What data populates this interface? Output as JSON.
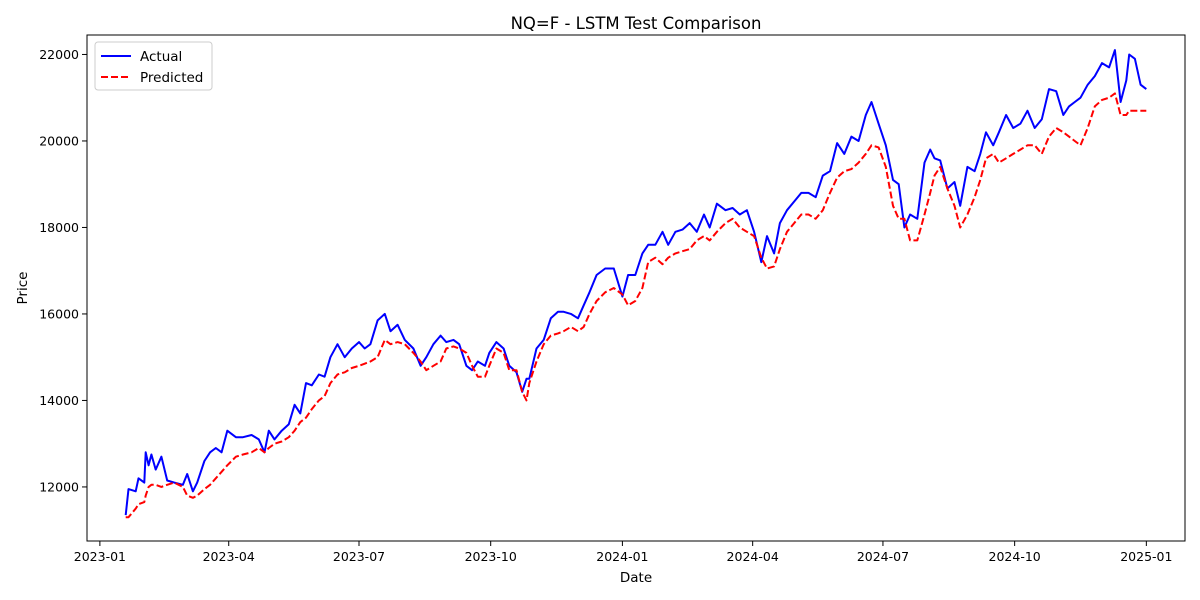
{
  "chart_data": {
    "type": "line",
    "title": "NQ=F - LSTM Test Comparison",
    "xlabel": "Date",
    "ylabel": "Price",
    "xlim": [
      "2022-12-23",
      "2025-01-28"
    ],
    "ylim": [
      10750,
      22450
    ],
    "x_ticks": [
      "2023-01",
      "2023-04",
      "2023-07",
      "2023-10",
      "2024-01",
      "2024-04",
      "2024-07",
      "2024-10",
      "2025-01"
    ],
    "y_ticks": [
      12000,
      14000,
      16000,
      18000,
      20000,
      22000
    ],
    "y_tick_labels": [
      "12000",
      "14000",
      "16000",
      "18000",
      "20000",
      "22000"
    ],
    "grid": false,
    "legend_position": "upper-left",
    "series": [
      {
        "name": "Actual",
        "color": "#0000ff",
        "style": "solid",
        "x": [
          "2023-01-19",
          "2023-01-21",
          "2023-01-26",
          "2023-01-28",
          "2023-02-01",
          "2023-02-02",
          "2023-02-04",
          "2023-02-06",
          "2023-02-09",
          "2023-02-13",
          "2023-02-17",
          "2023-02-22",
          "2023-02-28",
          "2023-03-03",
          "2023-03-07",
          "2023-03-10",
          "2023-03-15",
          "2023-03-19",
          "2023-03-23",
          "2023-03-27",
          "2023-03-31",
          "2023-04-06",
          "2023-04-11",
          "2023-04-17",
          "2023-04-22",
          "2023-04-26",
          "2023-04-29",
          "2023-05-03",
          "2023-05-08",
          "2023-05-13",
          "2023-05-17",
          "2023-05-21",
          "2023-05-25",
          "2023-05-29",
          "2023-06-03",
          "2023-06-07",
          "2023-06-11",
          "2023-06-16",
          "2023-06-21",
          "2023-06-26",
          "2023-07-01",
          "2023-07-05",
          "2023-07-09",
          "2023-07-14",
          "2023-07-19",
          "2023-07-23",
          "2023-07-28",
          "2023-08-02",
          "2023-08-08",
          "2023-08-13",
          "2023-08-17",
          "2023-08-22",
          "2023-08-27",
          "2023-08-31",
          "2023-09-05",
          "2023-09-09",
          "2023-09-14",
          "2023-09-18",
          "2023-09-22",
          "2023-09-27",
          "2023-09-30",
          "2023-10-05",
          "2023-10-10",
          "2023-10-14",
          "2023-10-19",
          "2023-10-23",
          "2023-10-26",
          "2023-10-28",
          "2023-11-02",
          "2023-11-07",
          "2023-11-12",
          "2023-11-17",
          "2023-11-21",
          "2023-11-26",
          "2023-12-01",
          "2023-12-05",
          "2023-12-09",
          "2023-12-14",
          "2023-12-20",
          "2023-12-26",
          "2024-01-01",
          "2024-01-05",
          "2024-01-10",
          "2024-01-15",
          "2024-01-19",
          "2024-01-24",
          "2024-01-29",
          "2024-02-02",
          "2024-02-07",
          "2024-02-12",
          "2024-02-17",
          "2024-02-22",
          "2024-02-27",
          "2024-03-02",
          "2024-03-07",
          "2024-03-13",
          "2024-03-18",
          "2024-03-23",
          "2024-03-28",
          "2024-04-02",
          "2024-04-07",
          "2024-04-11",
          "2024-04-16",
          "2024-04-20",
          "2024-04-25",
          "2024-04-30",
          "2024-05-05",
          "2024-05-10",
          "2024-05-15",
          "2024-05-20",
          "2024-05-25",
          "2024-05-30",
          "2024-06-04",
          "2024-06-09",
          "2024-06-14",
          "2024-06-19",
          "2024-06-23",
          "2024-06-28",
          "2024-07-03",
          "2024-07-08",
          "2024-07-12",
          "2024-07-16",
          "2024-07-20",
          "2024-07-25",
          "2024-07-30",
          "2024-08-03",
          "2024-08-06",
          "2024-08-10",
          "2024-08-15",
          "2024-08-20",
          "2024-08-24",
          "2024-08-29",
          "2024-09-03",
          "2024-09-07",
          "2024-09-11",
          "2024-09-16",
          "2024-09-20",
          "2024-09-25",
          "2024-09-30",
          "2024-10-05",
          "2024-10-10",
          "2024-10-15",
          "2024-10-20",
          "2024-10-25",
          "2024-10-30",
          "2024-11-04",
          "2024-11-08",
          "2024-11-12",
          "2024-11-16",
          "2024-11-21",
          "2024-11-26",
          "2024-12-01",
          "2024-12-06",
          "2024-12-10",
          "2024-12-14",
          "2024-12-18",
          "2024-12-20",
          "2024-12-24",
          "2024-12-28",
          "2025-01-01"
        ],
        "values": [
          11350,
          11950,
          11900,
          12200,
          12100,
          12800,
          12500,
          12750,
          12400,
          12700,
          12150,
          12100,
          12050,
          12300,
          11900,
          12100,
          12600,
          12800,
          12900,
          12800,
          13300,
          13150,
          13150,
          13200,
          13100,
          12800,
          13300,
          13100,
          13300,
          13450,
          13900,
          13700,
          14400,
          14350,
          14600,
          14550,
          15000,
          15300,
          15000,
          15200,
          15350,
          15200,
          15300,
          15850,
          16000,
          15600,
          15750,
          15400,
          15200,
          14800,
          15000,
          15300,
          15500,
          15350,
          15400,
          15300,
          14800,
          14700,
          14900,
          14800,
          15100,
          15350,
          15200,
          14800,
          14650,
          14200,
          14500,
          14500,
          15200,
          15400,
          15900,
          16050,
          16050,
          16000,
          15900,
          16200,
          16500,
          16900,
          17050,
          17050,
          16400,
          16900,
          16900,
          17400,
          17600,
          17600,
          17900,
          17600,
          17900,
          17950,
          18100,
          17900,
          18300,
          18000,
          18550,
          18400,
          18450,
          18300,
          18400,
          17900,
          17200,
          17800,
          17400,
          18100,
          18400,
          18600,
          18800,
          18800,
          18700,
          19200,
          19300,
          19950,
          19700,
          20100,
          20000,
          20600,
          20900,
          20400,
          19900,
          19100,
          19000,
          18000,
          18300,
          18200,
          19500,
          19800,
          19600,
          19550,
          18900,
          19050,
          18500,
          19400,
          19300,
          19700,
          20200,
          19900,
          20200,
          20600,
          20300,
          20400,
          20700,
          20300,
          20500,
          21200,
          21150,
          20600,
          20800,
          20900,
          21000,
          21300,
          21500,
          21800,
          21700,
          22100,
          20900,
          21400,
          22000,
          21900,
          21300,
          21200
        ]
      },
      {
        "name": "Predicted",
        "color": "#ff0000",
        "style": "dashed",
        "x": [
          "2023-01-19",
          "2023-01-21",
          "2023-01-26",
          "2023-01-28",
          "2023-02-01",
          "2023-02-02",
          "2023-02-04",
          "2023-02-06",
          "2023-02-09",
          "2023-02-13",
          "2023-02-17",
          "2023-02-22",
          "2023-02-28",
          "2023-03-03",
          "2023-03-07",
          "2023-03-10",
          "2023-03-15",
          "2023-03-19",
          "2023-03-23",
          "2023-03-27",
          "2023-03-31",
          "2023-04-06",
          "2023-04-11",
          "2023-04-17",
          "2023-04-22",
          "2023-04-26",
          "2023-04-29",
          "2023-05-03",
          "2023-05-08",
          "2023-05-13",
          "2023-05-17",
          "2023-05-21",
          "2023-05-25",
          "2023-05-29",
          "2023-06-03",
          "2023-06-07",
          "2023-06-11",
          "2023-06-16",
          "2023-06-21",
          "2023-06-26",
          "2023-07-01",
          "2023-07-05",
          "2023-07-09",
          "2023-07-14",
          "2023-07-19",
          "2023-07-23",
          "2023-07-28",
          "2023-08-02",
          "2023-08-08",
          "2023-08-13",
          "2023-08-17",
          "2023-08-22",
          "2023-08-27",
          "2023-08-31",
          "2023-09-05",
          "2023-09-09",
          "2023-09-14",
          "2023-09-18",
          "2023-09-22",
          "2023-09-27",
          "2023-09-30",
          "2023-10-05",
          "2023-10-10",
          "2023-10-14",
          "2023-10-19",
          "2023-10-23",
          "2023-10-26",
          "2023-10-28",
          "2023-11-02",
          "2023-11-07",
          "2023-11-12",
          "2023-11-17",
          "2023-11-21",
          "2023-11-26",
          "2023-12-01",
          "2023-12-05",
          "2023-12-09",
          "2023-12-14",
          "2023-12-20",
          "2023-12-26",
          "2024-01-01",
          "2024-01-05",
          "2024-01-10",
          "2024-01-15",
          "2024-01-19",
          "2024-01-24",
          "2024-01-29",
          "2024-02-02",
          "2024-02-07",
          "2024-02-12",
          "2024-02-17",
          "2024-02-22",
          "2024-02-27",
          "2024-03-02",
          "2024-03-07",
          "2024-03-13",
          "2024-03-18",
          "2024-03-23",
          "2024-03-28",
          "2024-04-02",
          "2024-04-07",
          "2024-04-11",
          "2024-04-16",
          "2024-04-20",
          "2024-04-25",
          "2024-04-30",
          "2024-05-05",
          "2024-05-10",
          "2024-05-15",
          "2024-05-20",
          "2024-05-25",
          "2024-05-30",
          "2024-06-04",
          "2024-06-09",
          "2024-06-14",
          "2024-06-19",
          "2024-06-23",
          "2024-06-28",
          "2024-07-03",
          "2024-07-08",
          "2024-07-12",
          "2024-07-16",
          "2024-07-20",
          "2024-07-25",
          "2024-07-30",
          "2024-08-03",
          "2024-08-06",
          "2024-08-10",
          "2024-08-15",
          "2024-08-20",
          "2024-08-24",
          "2024-08-29",
          "2024-09-03",
          "2024-09-07",
          "2024-09-11",
          "2024-09-16",
          "2024-09-20",
          "2024-09-25",
          "2024-09-30",
          "2024-10-05",
          "2024-10-10",
          "2024-10-15",
          "2024-10-20",
          "2024-10-25",
          "2024-10-30",
          "2024-11-04",
          "2024-11-08",
          "2024-11-12",
          "2024-11-16",
          "2024-11-21",
          "2024-11-26",
          "2024-12-01",
          "2024-12-06",
          "2024-12-10",
          "2024-12-14",
          "2024-12-18",
          "2024-12-20",
          "2024-12-24",
          "2024-12-28",
          "2025-01-01"
        ],
        "values": [
          11300,
          11300,
          11500,
          11600,
          11650,
          11800,
          12000,
          12050,
          12050,
          12000,
          12050,
          12100,
          12000,
          11800,
          11750,
          11800,
          11950,
          12050,
          12200,
          12350,
          12500,
          12700,
          12750,
          12800,
          12900,
          12800,
          12900,
          13000,
          13050,
          13150,
          13300,
          13500,
          13600,
          13800,
          14000,
          14100,
          14400,
          14600,
          14650,
          14750,
          14800,
          14850,
          14900,
          15000,
          15400,
          15300,
          15350,
          15300,
          15100,
          14900,
          14700,
          14800,
          14900,
          15200,
          15250,
          15200,
          15100,
          14800,
          14550,
          14550,
          14800,
          15200,
          15100,
          14700,
          14700,
          14200,
          14000,
          14400,
          14900,
          15300,
          15500,
          15550,
          15600,
          15700,
          15600,
          15700,
          16000,
          16300,
          16500,
          16600,
          16450,
          16200,
          16300,
          16600,
          17200,
          17300,
          17150,
          17300,
          17400,
          17450,
          17500,
          17700,
          17800,
          17700,
          17900,
          18100,
          18200,
          18000,
          17900,
          17800,
          17300,
          17050,
          17100,
          17500,
          17900,
          18100,
          18300,
          18300,
          18200,
          18400,
          18800,
          19150,
          19300,
          19350,
          19500,
          19700,
          19900,
          19850,
          19400,
          18500,
          18200,
          18200,
          17700,
          17700,
          18300,
          18800,
          19200,
          19400,
          18900,
          18500,
          18000,
          18300,
          18700,
          19100,
          19600,
          19700,
          19500,
          19600,
          19700,
          19800,
          19900,
          19900,
          19700,
          20100,
          20300,
          20200,
          20100,
          20000,
          19900,
          20300,
          20800,
          20950,
          21000,
          21100,
          20600,
          20600,
          20700,
          20700,
          20700,
          20700
        ]
      }
    ]
  }
}
